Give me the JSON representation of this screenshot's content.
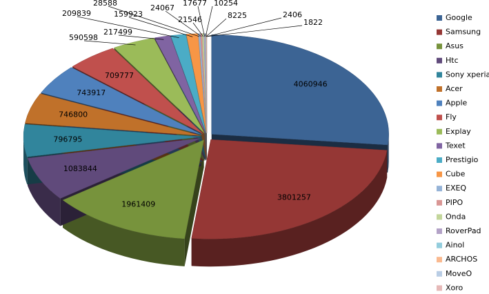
{
  "chart_data": {
    "type": "pie",
    "exploded": true,
    "three_d": true,
    "categories": [
      "Google",
      "Samsung",
      "Asus",
      "Htc",
      "Sony xperia",
      "Acer",
      "Apple",
      "Fly",
      "Explay",
      "Texet",
      "Prestigio",
      "Cube",
      "EXEQ",
      "PIPO",
      "Onda",
      "RoverPad",
      "Ainol",
      "ARCHOS",
      "MoveO",
      "Xoro"
    ],
    "values": [
      4060946,
      3801257,
      1961409,
      1083844,
      796795,
      746800,
      743917,
      709777,
      590598,
      217499,
      209839,
      159923,
      28588,
      24067,
      21546,
      17677,
      10254,
      8225,
      2406,
      1822
    ],
    "colors": [
      "#3c6494",
      "#953735",
      "#77933c",
      "#604a7b",
      "#31859c",
      "#c0712a",
      "#4f81bd",
      "#c0504d",
      "#9bbb59",
      "#8064a2",
      "#4bacc6",
      "#f79646",
      "#95b3d7",
      "#d99694",
      "#c3d69b",
      "#b3a2c7",
      "#93cddd",
      "#fab98f",
      "#b9cde5",
      "#e6b9b8"
    ],
    "legend": "right"
  }
}
